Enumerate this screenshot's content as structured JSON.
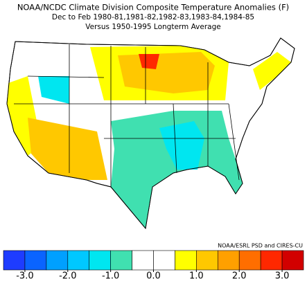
{
  "header": {
    "title": "NOAA/NCDC Climate Division Composite Temperature Anomalies (F)",
    "subtitle": "Dec to Feb  1980-81,1981-82,1982-83,1983-84,1984-85",
    "reference": "Versus 1950-1995 Longterm Average"
  },
  "credit": "NOAA/ESRL PSD and CIRES-CU",
  "colorbar": {
    "range": [
      -3.5,
      3.5
    ],
    "colors": [
      "#1e3cff",
      "#0a64ff",
      "#00a0ff",
      "#00c8ff",
      "#00e6f0",
      "#40e0b0",
      "#ffffff",
      "#ffffff",
      "#ffff00",
      "#ffc800",
      "#ffa000",
      "#ff6e00",
      "#ff2800",
      "#d20000"
    ],
    "ticks": [
      {
        "value": -3,
        "label": "-3.0"
      },
      {
        "value": -2,
        "label": "-2.0"
      },
      {
        "value": -1,
        "label": "-1.0"
      },
      {
        "value": 0,
        "label": "0.0"
      },
      {
        "value": 1,
        "label": "1.0"
      },
      {
        "value": 2,
        "label": "2.0"
      },
      {
        "value": 3,
        "label": "3.0"
      }
    ]
  }
}
